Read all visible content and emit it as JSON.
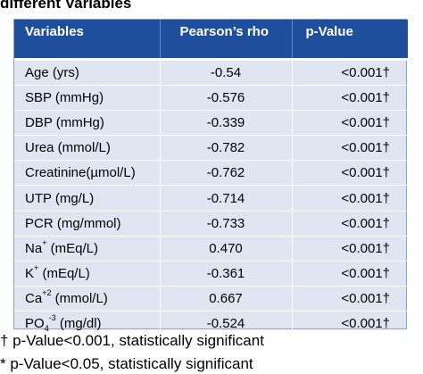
{
  "caption": "different Variables",
  "table": {
    "headers": [
      "Variables",
      "Pearson’s rho",
      "p-Value"
    ],
    "rows": [
      {
        "variable": "Age (yrs)",
        "rho": "-0.54",
        "p": "<0.001†"
      },
      {
        "variable": "SBP (mmHg)",
        "rho": "-0.576",
        "p": "<0.001†"
      },
      {
        "variable": "DBP (mmHg)",
        "rho": "-0.339",
        "p": "<0.001†"
      },
      {
        "variable": "Urea (mmol/L)",
        "rho": "-0.782",
        "p": "<0.001†"
      },
      {
        "variable": "Creatinine(µmol/L)",
        "rho": "-0.762",
        "p": "<0.001†"
      },
      {
        "variable": "UTP (mg/L)",
        "rho": "-0.714",
        "p": "<0.001†"
      },
      {
        "variable": "PCR (mg/mmol)",
        "rho": "-0.733",
        "p": "<0.001†"
      },
      {
        "variable_base": "Na",
        "variable_sup": "+",
        "variable_rest": " (mEq/L)",
        "rho": "0.470",
        "p": "<0.001†"
      },
      {
        "variable_base": "K",
        "variable_sup": "+",
        "variable_rest": " (mEq/L)",
        "rho": "-0.361",
        "p": "<0.001†"
      },
      {
        "variable_base": "Ca",
        "variable_sup": "+2",
        "variable_rest": " (mmol/L)",
        "rho": "0.667",
        "p": "<0.001†"
      },
      {
        "variable_base": "PO",
        "variable_sub": "4",
        "variable_sup": "-3",
        "variable_rest": " (mg/dl)",
        "rho": "-0.524",
        "p": "<0.001†"
      }
    ]
  },
  "footnotes": {
    "dagger": "† p-Value<0.001, statistically significant",
    "asterisk": "* p-Value<0.05, statistically significant"
  },
  "colors": {
    "header_bg": "#1f4e9c",
    "body_bg": "#dfe6f2"
  }
}
